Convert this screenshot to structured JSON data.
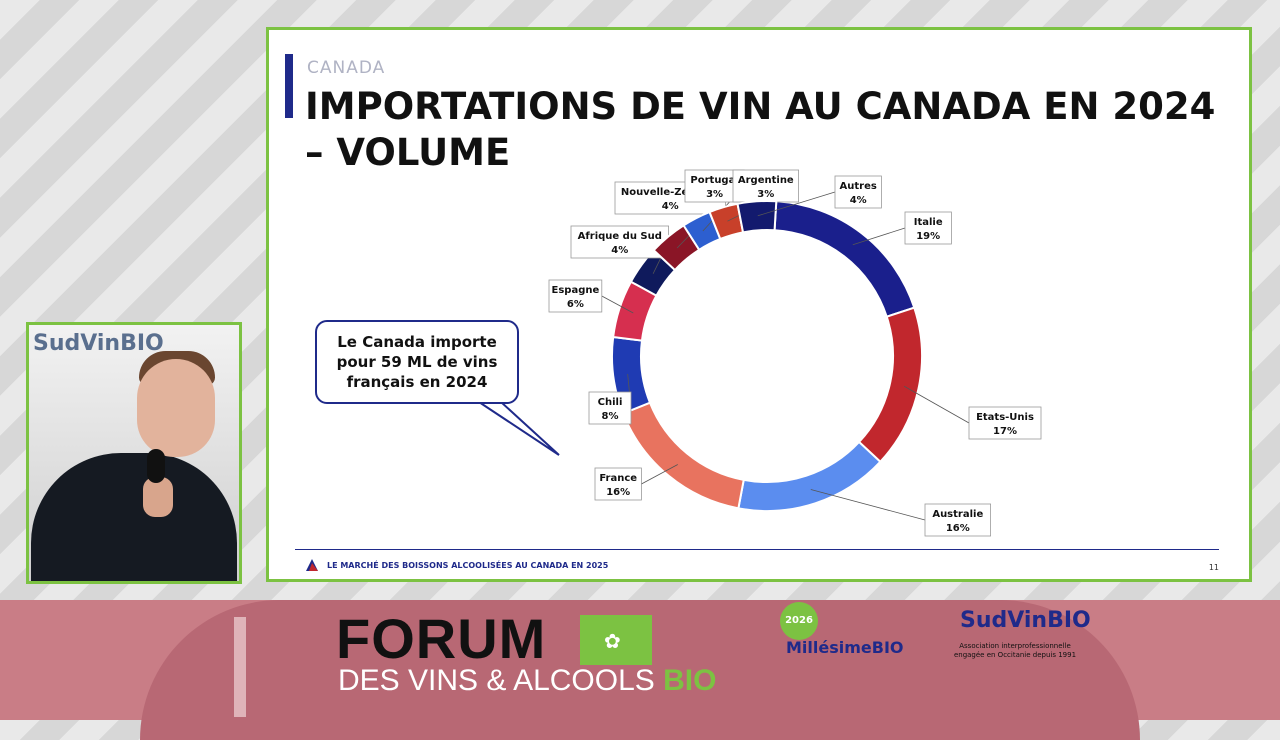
{
  "slide": {
    "kicker": "CANADA",
    "title": "IMPORTATIONS DE VIN AU CANADA EN 2024 – VOLUME",
    "footer": "LE MARCHÉ DES BOISSONS ALCOOLISÉES AU CANADA EN 2025",
    "page_number": "11",
    "callout": "Le Canada importe pour 59 ML de vins français en 2024"
  },
  "chart_data": {
    "type": "pie",
    "donut": true,
    "title": "",
    "slices": [
      {
        "name": "Italie",
        "label": "19%",
        "value": 19,
        "color": "#1a1f8c"
      },
      {
        "name": "Etats-Unis",
        "label": "17%",
        "value": 17,
        "color": "#c1272d"
      },
      {
        "name": "Australie",
        "label": "16%",
        "value": 16,
        "color": "#5b8def"
      },
      {
        "name": "France",
        "label": "16%",
        "value": 16,
        "color": "#e8735f"
      },
      {
        "name": "Chili",
        "label": "8%",
        "value": 8,
        "color": "#1f3bb3"
      },
      {
        "name": "Espagne",
        "label": "6%",
        "value": 6,
        "color": "#d62f4f"
      },
      {
        "name": "Afrique du Sud",
        "label": "4%",
        "value": 4,
        "color": "#0f1a5c"
      },
      {
        "name": "Nouvelle-Zélande",
        "label": "4%",
        "value": 4,
        "color": "#8a1526"
      },
      {
        "name": "Portugal",
        "label": "3%",
        "value": 3,
        "color": "#2d5fd0"
      },
      {
        "name": "Argentine",
        "label": "3%",
        "value": 3,
        "color": "#c8402a"
      },
      {
        "name": "Autres",
        "label": "4%",
        "value": 4,
        "color": "#131a6e"
      }
    ]
  },
  "banner": {
    "forum_title": "FORUM",
    "forum_subtitle": "DES VINS & ALCOOLS ",
    "forum_subtitle_bio": "BIO",
    "badge_year": "2026",
    "millesime": "MillésimeBIO",
    "sudvin": "SudVinBIO",
    "sudvin_sub": "Association interprofessionnelle engagée en Occitanie depuis 1991"
  },
  "video": {
    "logo": "SudVinBIO"
  }
}
